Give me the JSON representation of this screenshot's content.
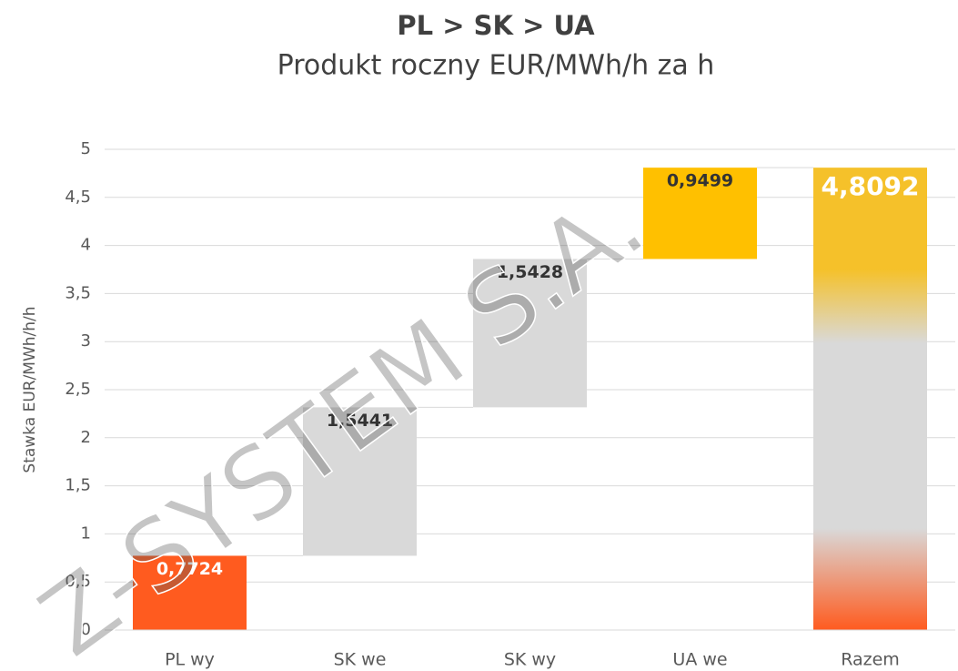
{
  "chart_data": {
    "type": "waterfall",
    "title": "PL > SK > UA",
    "subtitle": "Produkt roczny EUR/MWh/h za h",
    "y_label": "Stawka EUR/MWh/h/h",
    "categories": [
      "PL wy",
      "SK we",
      "SK wy",
      "UA we",
      "Razem"
    ],
    "values": [
      0.7724,
      1.5441,
      1.5428,
      0.9499,
      4.8092
    ],
    "value_labels": [
      "0,7724",
      "1,5441",
      "1,5428",
      "0,9499",
      "4,8092"
    ],
    "is_total": [
      false,
      false,
      false,
      false,
      true
    ],
    "colors": [
      "#ff5b1f",
      "#d9d9d9",
      "#d9d9d9",
      "#ffc000",
      "#d9d9d9"
    ],
    "total_gradient": [
      "#f5c12a",
      "#d9d9d9",
      "#ff5b1f"
    ],
    "ylim": [
      0,
      5
    ],
    "yticks": [
      0,
      {
        "value": 0.5,
        "label": "0,5"
      },
      1,
      {
        "value": 1.5,
        "label": "1,5"
      },
      2,
      {
        "value": 2.5,
        "label": "2,5"
      },
      3,
      {
        "value": 3.5,
        "label": "3,5"
      },
      4,
      {
        "value": 4.5,
        "label": "4,5"
      },
      5
    ],
    "grid": true,
    "watermark": "Z-SYSTEM S.A."
  }
}
